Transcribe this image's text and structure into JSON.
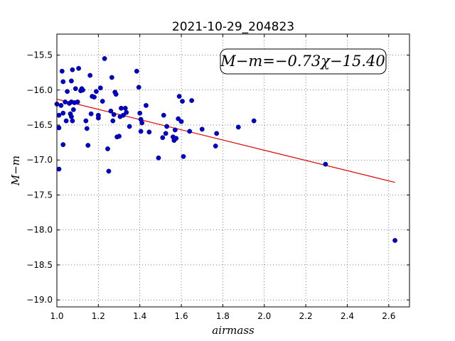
{
  "chart_data": {
    "type": "scatter",
    "title": "2021-10-29_204823",
    "xlabel": "airmass",
    "ylabel": "M−m",
    "xlim": [
      1.0,
      2.7
    ],
    "ylim": [
      -19.1,
      -15.2
    ],
    "x_ticks": [
      1.0,
      1.2,
      1.4,
      1.6,
      1.8,
      2.0,
      2.2,
      2.4,
      2.6
    ],
    "x_tick_labels": [
      "1.0",
      "1.2",
      "1.4",
      "1.6",
      "1.8",
      "2.0",
      "2.2",
      "2.4",
      "2.6"
    ],
    "y_ticks": [
      -15.5,
      -16.0,
      -16.5,
      -17.0,
      -17.5,
      -18.0,
      -18.5,
      -19.0
    ],
    "y_tick_labels": [
      "−15.5",
      "−16.0",
      "−16.5",
      "−17.0",
      "−17.5",
      "−18.0",
      "−18.5",
      "−19.0"
    ],
    "grid": true,
    "annotation": "M−m=−0.73χ−15.40",
    "fit": {
      "slope": -0.73,
      "intercept": -15.4,
      "x_range": [
        1.0,
        2.63
      ],
      "color": "#dd0000"
    },
    "point_color": "#0000cc",
    "points": [
      [
        1.0,
        -16.2
      ],
      [
        1.01,
        -16.36
      ],
      [
        1.01,
        -16.54
      ],
      [
        1.01,
        -17.13
      ],
      [
        1.02,
        -16.22
      ],
      [
        1.025,
        -15.73
      ],
      [
        1.03,
        -15.88
      ],
      [
        1.03,
        -16.33
      ],
      [
        1.03,
        -16.78
      ],
      [
        1.04,
        -16.17
      ],
      [
        1.045,
        -16.44
      ],
      [
        1.05,
        -16.02
      ],
      [
        1.06,
        -16.19
      ],
      [
        1.065,
        -16.34
      ],
      [
        1.07,
        -15.87
      ],
      [
        1.07,
        -16.17
      ],
      [
        1.07,
        -16.38
      ],
      [
        1.075,
        -15.71
      ],
      [
        1.075,
        -16.44
      ],
      [
        1.08,
        -16.28
      ],
      [
        1.085,
        -16.18
      ],
      [
        1.09,
        -15.98
      ],
      [
        1.1,
        -16.17
      ],
      [
        1.105,
        -15.69
      ],
      [
        1.115,
        -16.01
      ],
      [
        1.12,
        -15.98
      ],
      [
        1.125,
        -16.0
      ],
      [
        1.14,
        -16.44
      ],
      [
        1.145,
        -16.55
      ],
      [
        1.15,
        -16.79
      ],
      [
        1.16,
        -15.79
      ],
      [
        1.165,
        -16.34
      ],
      [
        1.17,
        -16.09
      ],
      [
        1.18,
        -16.1
      ],
      [
        1.19,
        -16.02
      ],
      [
        1.2,
        -16.36
      ],
      [
        1.2,
        -16.4
      ],
      [
        1.21,
        -15.97
      ],
      [
        1.22,
        -16.16
      ],
      [
        1.23,
        -15.55
      ],
      [
        1.245,
        -16.84
      ],
      [
        1.25,
        -17.16
      ],
      [
        1.26,
        -16.3
      ],
      [
        1.265,
        -15.82
      ],
      [
        1.27,
        -16.44
      ],
      [
        1.275,
        -16.35
      ],
      [
        1.28,
        -16.03
      ],
      [
        1.285,
        -16.06
      ],
      [
        1.29,
        -16.67
      ],
      [
        1.3,
        -16.66
      ],
      [
        1.305,
        -16.38
      ],
      [
        1.31,
        -16.26
      ],
      [
        1.32,
        -16.36
      ],
      [
        1.33,
        -16.26
      ],
      [
        1.335,
        -16.32
      ],
      [
        1.35,
        -16.52
      ],
      [
        1.385,
        -15.73
      ],
      [
        1.395,
        -15.96
      ],
      [
        1.4,
        -16.33
      ],
      [
        1.405,
        -16.42
      ],
      [
        1.405,
        -16.59
      ],
      [
        1.41,
        -16.47
      ],
      [
        1.43,
        -16.22
      ],
      [
        1.445,
        -16.6
      ],
      [
        1.49,
        -16.97
      ],
      [
        1.51,
        -16.68
      ],
      [
        1.515,
        -16.36
      ],
      [
        1.525,
        -16.62
      ],
      [
        1.53,
        -16.52
      ],
      [
        1.56,
        -16.67
      ],
      [
        1.565,
        -16.72
      ],
      [
        1.57,
        -16.57
      ],
      [
        1.575,
        -16.69
      ],
      [
        1.585,
        -16.41
      ],
      [
        1.59,
        -16.09
      ],
      [
        1.6,
        -16.45
      ],
      [
        1.605,
        -16.16
      ],
      [
        1.61,
        -16.95
      ],
      [
        1.64,
        -16.59
      ],
      [
        1.65,
        -16.15
      ],
      [
        1.7,
        -16.56
      ],
      [
        1.765,
        -16.8
      ],
      [
        1.77,
        -16.62
      ],
      [
        1.875,
        -16.53
      ],
      [
        1.95,
        -16.44
      ],
      [
        2.295,
        -17.06
      ],
      [
        2.63,
        -18.15
      ]
    ]
  }
}
